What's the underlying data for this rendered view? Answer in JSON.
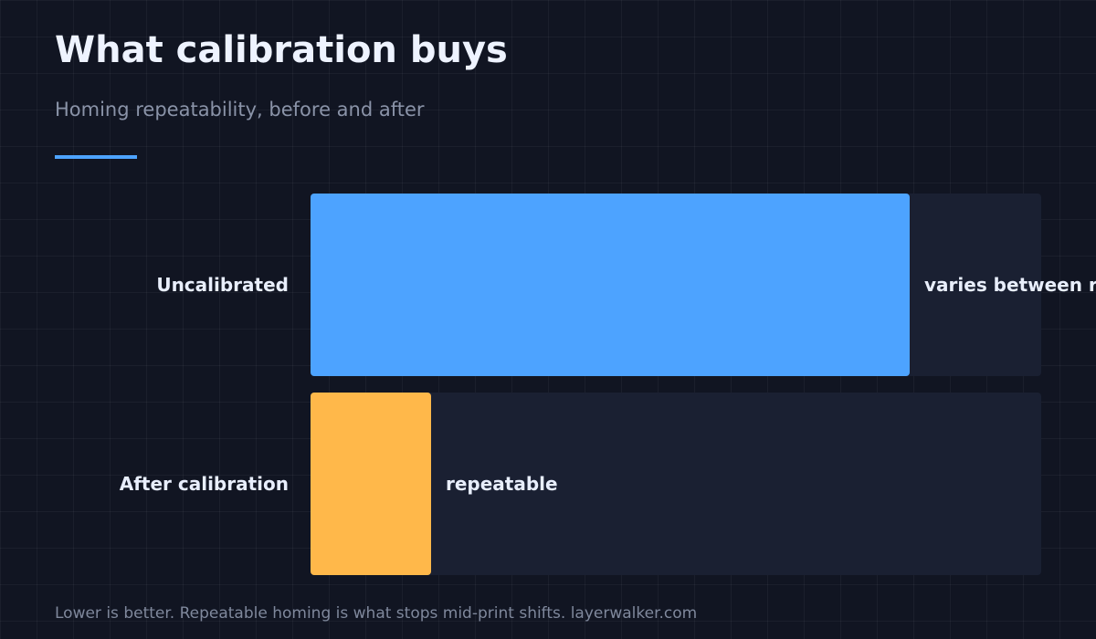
{
  "title": "What calibration buys",
  "subtitle": "Homing repeatability, before and after",
  "footer": "Lower is better. Repeatable homing is what stops mid-print shifts. layerwalker.com",
  "colors": {
    "background": "#111522",
    "track": "#1a2032",
    "accent_rule": "#4da3ff",
    "uncalibrated": "#4da3ff",
    "calibrated": "#ffb84a",
    "label_text": "#e8eefc"
  },
  "chart_data": {
    "type": "bar",
    "orientation": "horizontal",
    "categories": [
      "Uncalibrated",
      "After calibration"
    ],
    "values": [
      82,
      16.5
    ],
    "value_labels": [
      "varies between runs",
      "repeatable"
    ],
    "xlim": [
      0,
      100
    ],
    "grid": false,
    "legend": "none",
    "title": "What calibration buys",
    "subtitle": "Homing repeatability, before and after"
  }
}
